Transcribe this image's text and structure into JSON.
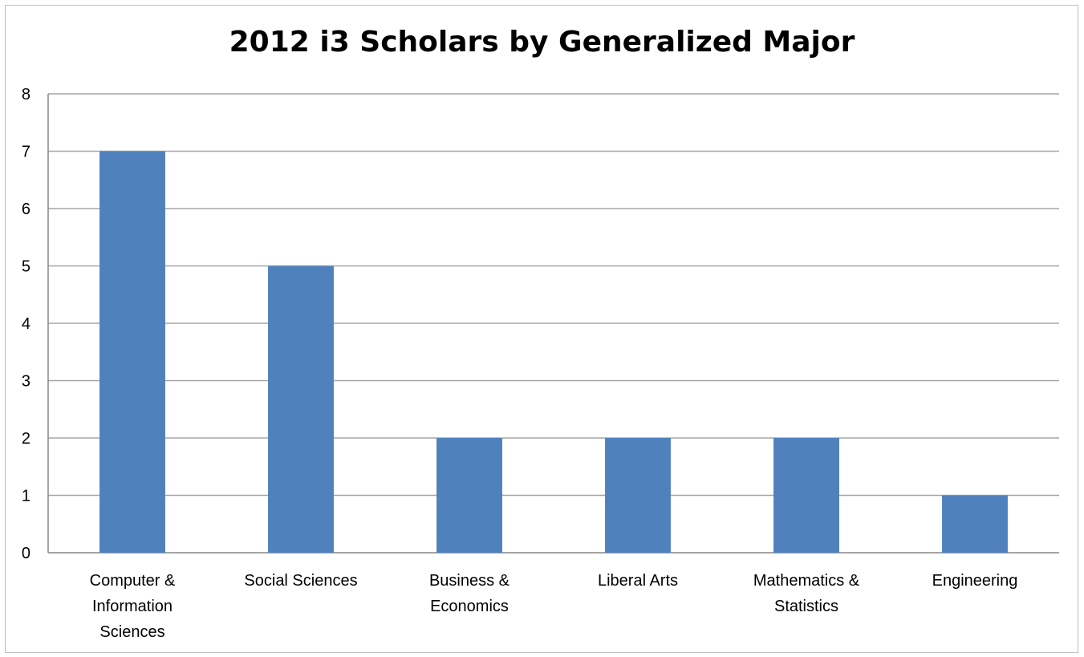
{
  "chart_data": {
    "type": "bar",
    "title": "2012 i3 Scholars by Generalized Major",
    "xlabel": "",
    "ylabel": "",
    "categories": [
      [
        "Computer &",
        "Information",
        "Sciences"
      ],
      [
        "Social Sciences"
      ],
      [
        "Business &",
        "Economics"
      ],
      [
        "Liberal Arts"
      ],
      [
        "Mathematics &",
        "Statistics"
      ],
      [
        "Engineering"
      ]
    ],
    "values": [
      7,
      5,
      2,
      2,
      2,
      1
    ],
    "ylim": [
      0,
      8
    ],
    "yticks": [
      "0",
      "1",
      "2",
      "3",
      "4",
      "5",
      "6",
      "7",
      "8"
    ],
    "grid": true,
    "legend": "none",
    "bar_color": "#4f81bd",
    "grid_color": "#a6a6a6"
  }
}
